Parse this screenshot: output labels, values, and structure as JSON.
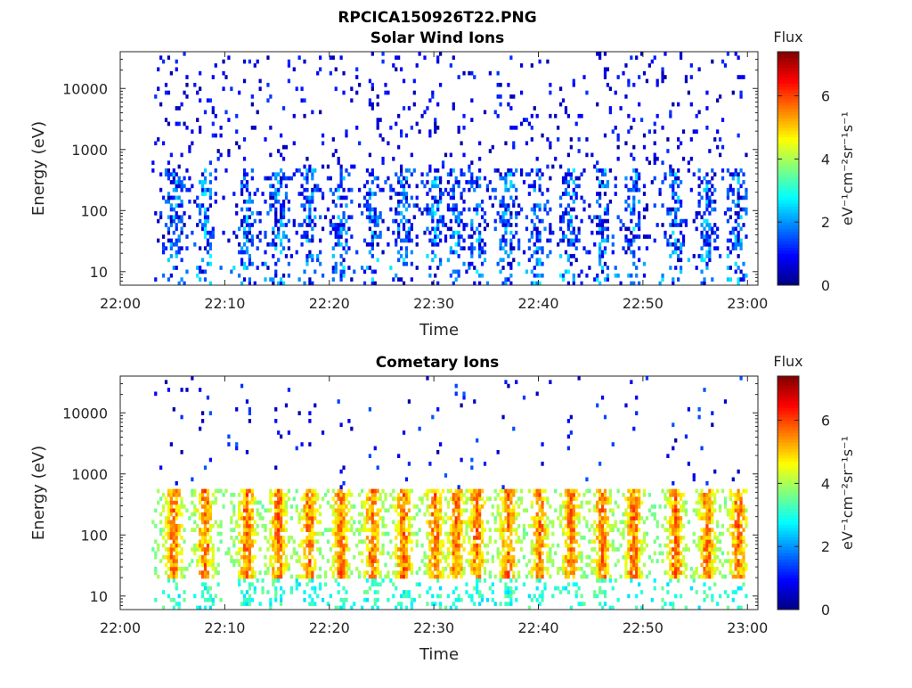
{
  "figure": {
    "title": "RPCICA150926T22.PNG"
  },
  "chart_data": [
    {
      "type": "heatmap",
      "title": "Solar Wind Ions",
      "xlabel": "Time",
      "ylabel": "Energy (eV)",
      "y_scale": "log",
      "x_range": [
        "22:00",
        "23:01"
      ],
      "y_range_eV": [
        6,
        40000
      ],
      "x_ticks": [
        "22:00",
        "22:10",
        "22:20",
        "22:30",
        "22:40",
        "22:50",
        "23:00"
      ],
      "y_ticks": [
        "10",
        "100",
        "1000",
        "10000"
      ],
      "grid": false,
      "colorbar": {
        "label": "Flux",
        "units": "eV⁻¹cm⁻²sr⁻¹s⁻¹",
        "range": [
          0,
          7.4
        ],
        "ticks": [
          "0",
          "2",
          "4",
          "6"
        ],
        "colormap": "jet"
      },
      "data_start": "22:03",
      "data_end": "23:00",
      "typical_flux_range": [
        0.3,
        2.8
      ],
      "enhanced_band_eV": [
        20,
        500
      ],
      "activity_bursts": [
        "22:05",
        "22:08",
        "22:12",
        "22:15",
        "22:18",
        "22:21",
        "22:24",
        "22:27",
        "22:30",
        "22:32",
        "22:34",
        "22:37",
        "22:40",
        "22:43",
        "22:46",
        "22:49",
        "22:53",
        "22:56",
        "22:59"
      ]
    },
    {
      "type": "heatmap",
      "title": "Cometary Ions",
      "xlabel": "Time",
      "ylabel": "Energy (eV)",
      "y_scale": "log",
      "x_range": [
        "22:00",
        "23:01"
      ],
      "y_range_eV": [
        6,
        40000
      ],
      "x_ticks": [
        "22:00",
        "22:10",
        "22:20",
        "22:30",
        "22:40",
        "22:50",
        "23:00"
      ],
      "y_ticks": [
        "10",
        "100",
        "1000",
        "10000"
      ],
      "grid": false,
      "colorbar": {
        "label": "Flux",
        "units": "eV⁻¹cm⁻²sr⁻¹s⁻¹",
        "range": [
          0,
          7.4
        ],
        "ticks": [
          "0",
          "2",
          "4",
          "6"
        ],
        "colormap": "jet"
      },
      "data_start": "22:03",
      "data_end": "23:00",
      "typical_flux_range": [
        2.5,
        6.3
      ],
      "enhanced_band_eV": [
        20,
        600
      ],
      "activity_bursts": [
        "22:05",
        "22:08",
        "22:12",
        "22:15",
        "22:18",
        "22:21",
        "22:24",
        "22:27",
        "22:30",
        "22:32",
        "22:34",
        "22:37",
        "22:40",
        "22:43",
        "22:46",
        "22:49",
        "22:53",
        "22:56",
        "22:59"
      ]
    }
  ]
}
